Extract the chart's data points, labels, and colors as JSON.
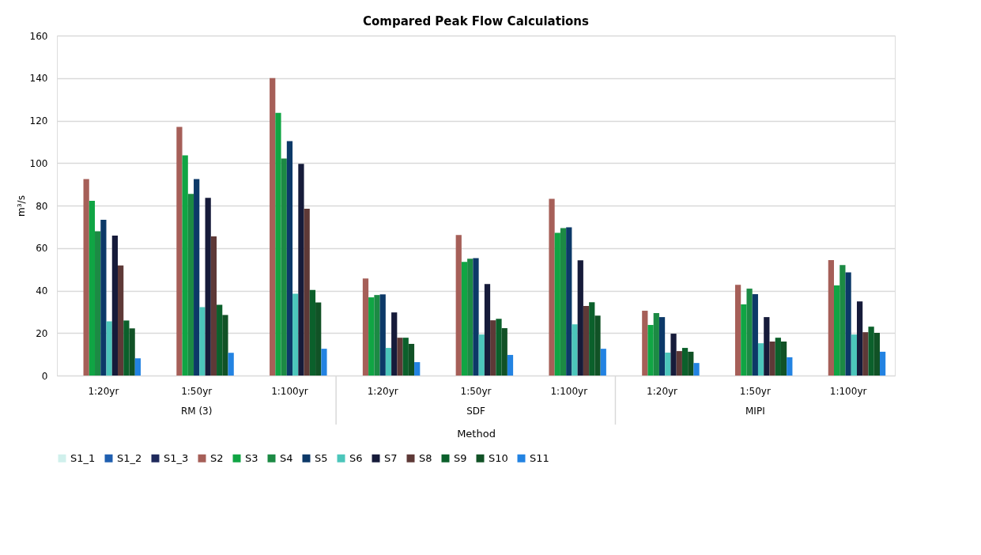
{
  "chart_data": {
    "type": "bar",
    "title": "Compared Peak Flow Calculations",
    "xlabel": "Method",
    "ylabel": "m³/s",
    "categories": [
      "1:20yr",
      "1:50yr",
      "1:100yr",
      "1:20yr",
      "1:50yr",
      "1:100yr",
      "1:20yr",
      "1:50yr",
      "1:100yr"
    ],
    "annotations": [
      "RM (3)",
      "SDF",
      "MIPI"
    ],
    "ylim": [
      0,
      160
    ],
    "yticks": [
      0,
      20,
      40,
      60,
      80,
      100,
      120,
      140,
      160
    ],
    "grid": "y",
    "legend": "bottom",
    "series": [
      {
        "name": "S1_1",
        "color": "#d0f0ec",
        "values": [
          null,
          null,
          null,
          null,
          null,
          null,
          null,
          null,
          null
        ]
      },
      {
        "name": "S1_2",
        "color": "#1f5fb0",
        "values": [
          null,
          null,
          null,
          null,
          null,
          null,
          null,
          null,
          null
        ]
      },
      {
        "name": "S1_3",
        "color": "#1f2a5c",
        "values": [
          null,
          null,
          null,
          null,
          null,
          null,
          null,
          null,
          null
        ]
      },
      {
        "name": "S2",
        "color": "#a65f58",
        "values": [
          92.5,
          117,
          140,
          45.7,
          66.1,
          83.2,
          30.5,
          42.7,
          54.3
        ]
      },
      {
        "name": "S3",
        "color": "#10a544",
        "values": [
          82.2,
          103.6,
          123.6,
          36.8,
          53.5,
          67.2,
          23.8,
          33.5,
          42.4
        ]
      },
      {
        "name": "S4",
        "color": "#1c8a44",
        "values": [
          67.9,
          85.5,
          102.1,
          37.9,
          55,
          69.4,
          29.4,
          40.9,
          52
        ]
      },
      {
        "name": "S5",
        "color": "#0c3968",
        "values": [
          73.3,
          92.5,
          110.3,
          38.2,
          55.3,
          69.8,
          27.5,
          38.3,
          48.6
        ]
      },
      {
        "name": "S6",
        "color": "#4cc6bb",
        "values": [
          25.5,
          32.2,
          38.5,
          13,
          19.3,
          24.1,
          10.8,
          15.2,
          19.3
        ]
      },
      {
        "name": "S7",
        "color": "#161b3a",
        "values": [
          65.9,
          83.6,
          99.6,
          29.7,
          43.1,
          54.2,
          19.7,
          27.5,
          34.9
        ]
      },
      {
        "name": "S8",
        "color": "#5e3937",
        "values": [
          51.8,
          65.5,
          78.5,
          17.8,
          26,
          32.7,
          11.5,
          16,
          20.4
        ]
      },
      {
        "name": "S9",
        "color": "#0b602b",
        "values": [
          25.9,
          33.3,
          40.3,
          17.8,
          26.7,
          34.5,
          13,
          17.8,
          23
        ]
      },
      {
        "name": "S10",
        "color": "#115226",
        "values": [
          22.2,
          28.5,
          34.4,
          14.9,
          22.3,
          28.2,
          11.2,
          16,
          20.1
        ]
      },
      {
        "name": "S11",
        "color": "#2383e2",
        "values": [
          8.1,
          10.7,
          12.6,
          6.3,
          9.7,
          12.6,
          5.9,
          8.6,
          11.2
        ]
      }
    ]
  }
}
